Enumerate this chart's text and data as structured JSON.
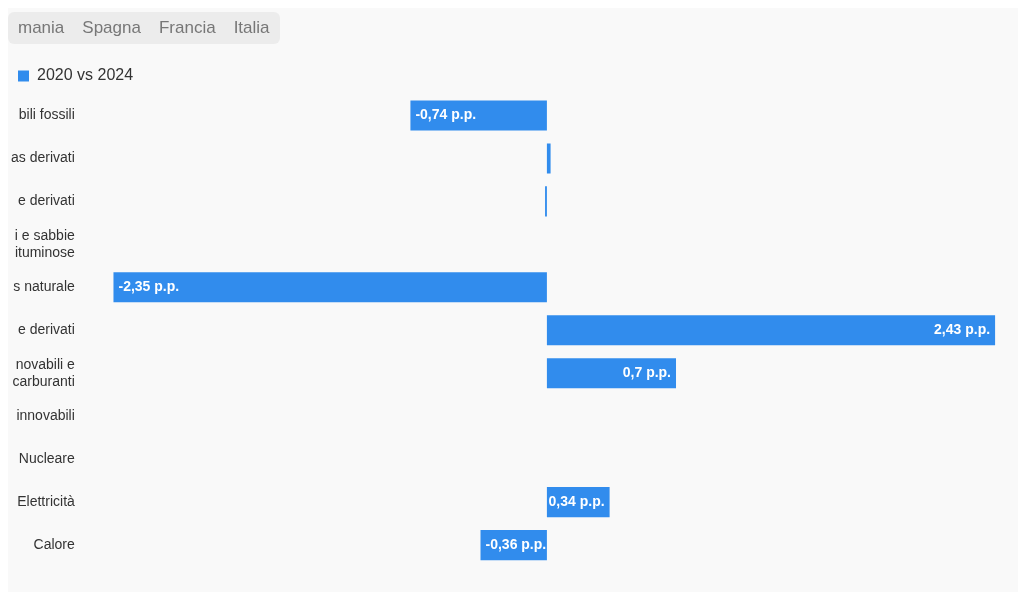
{
  "chart_data": {
    "type": "bar",
    "orientation": "horizontal",
    "categories": [
      "bili fossili",
      "as derivati",
      "e derivati",
      "i e sabbie\nituminose",
      "s naturale",
      "e derivati",
      "novabili e\ncarburanti",
      "innovabili",
      "Nucleare",
      "Elettricità",
      "Calore"
    ],
    "series": [
      {
        "name": "2020 vs 2024",
        "color": "#318ced",
        "values": [
          -0.74,
          0.02,
          -0.01,
          null,
          -2.35,
          2.43,
          0.7,
          null,
          null,
          0.34,
          -0.36
        ],
        "value_labels": [
          "-0,74 p.p.",
          null,
          null,
          null,
          "-2,35 p.p.",
          "2,43 p.p.",
          "0,7 p.p.",
          null,
          null,
          "0,34 p.p.",
          "-0,36 p.p."
        ]
      }
    ],
    "tick_labels": "y",
    "legend": "top left",
    "annotations": [
      "mania",
      "Spagna",
      "Francia",
      "Italia"
    ]
  }
}
